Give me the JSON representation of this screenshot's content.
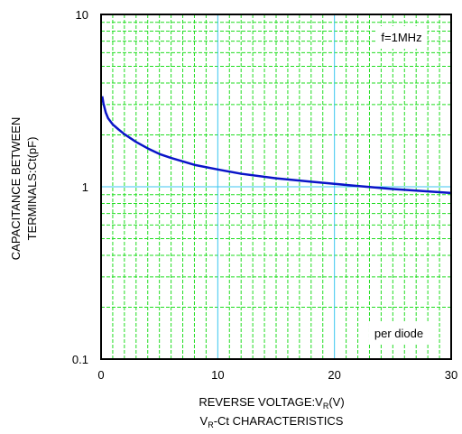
{
  "chart_data": {
    "type": "line",
    "xlabel_main": "REVERSE VOLTAGE:V",
    "xlabel_sub": "R",
    "xlabel_tail": "(V)",
    "subtitle_main": "V",
    "subtitle_sub": "R",
    "subtitle_tail": "-Ct CHARACTERISTICS",
    "ylabel_line1": "CAPACITANCE BETWEEN",
    "ylabel_line2": "TERMINALS:Ct(pF)",
    "xlim": [
      0,
      30
    ],
    "ylim": [
      0.1,
      10
    ],
    "yscale": "log",
    "grid": true,
    "x_ticks": [
      "0",
      "10",
      "20",
      "30"
    ],
    "y_ticks": [
      "0.1",
      "1",
      "10"
    ],
    "annotations": {
      "frequency": "f=1MHz",
      "note": "per diode"
    },
    "colors": {
      "curve": "#0a14c8",
      "grid": "#22dd22",
      "grid_major": "#3cc6f0",
      "frame": "#000000"
    },
    "series": [
      {
        "x": [
          0.1,
          0.2,
          0.4,
          0.6,
          1,
          1.5,
          2,
          3,
          4,
          5,
          6,
          8,
          10,
          12,
          15,
          18,
          20,
          22,
          25,
          28,
          30
        ],
        "values": [
          3.35,
          3.05,
          2.7,
          2.5,
          2.3,
          2.15,
          2.02,
          1.82,
          1.67,
          1.55,
          1.47,
          1.34,
          1.26,
          1.19,
          1.12,
          1.07,
          1.04,
          1.01,
          0.97,
          0.94,
          0.92
        ]
      }
    ]
  }
}
